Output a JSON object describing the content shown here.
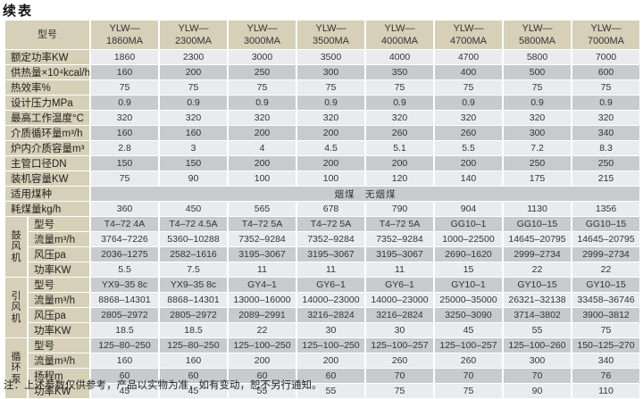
{
  "page_title": "续表",
  "note": "注：上述参数仅供参考，产品以实物为准，如有变动，恕不另行通知。",
  "colors": {
    "header_bg": "#d6d0b8",
    "row_light": "#eaebed",
    "row_dark": "#c8cbcd"
  },
  "table": {
    "corner_label": "型号",
    "columns": [
      {
        "line1": "YLW—",
        "line2": "1860MA"
      },
      {
        "line1": "YLW—",
        "line2": "2300MA"
      },
      {
        "line1": "YLW—",
        "line2": "3000MA"
      },
      {
        "line1": "YLW—",
        "line2": "3500MA"
      },
      {
        "line1": "YLW—",
        "line2": "4000MA"
      },
      {
        "line1": "YLW—",
        "line2": "4700MA"
      },
      {
        "line1": "YLW—",
        "line2": "5800MA"
      },
      {
        "line1": "YLW—",
        "line2": "7000MA"
      }
    ],
    "sections": [
      {
        "type": "rows",
        "rows": [
          {
            "label": "额定功率KW",
            "values": [
              "1860",
              "2300",
              "3000",
              "3500",
              "4000",
              "4700",
              "5800",
              "7000"
            ]
          },
          {
            "label": "供热量×10⁴kcal/h",
            "values": [
              "160",
              "200",
              "250",
              "300",
              "350",
              "400",
              "500",
              "600"
            ]
          },
          {
            "label": "热效率%",
            "values": [
              "75",
              "75",
              "75",
              "75",
              "75",
              "75",
              "75",
              "75"
            ]
          },
          {
            "label": "设计压力MPa",
            "values": [
              "0.9",
              "0.9",
              "0.9",
              "0.9",
              "0.9",
              "0.9",
              "0.9",
              "0.9"
            ]
          },
          {
            "label": "最高工作温度°C",
            "values": [
              "320",
              "320",
              "320",
              "320",
              "320",
              "320",
              "320",
              "320"
            ]
          },
          {
            "label": "介质循环量m³/h",
            "values": [
              "160",
              "160",
              "200",
              "200",
              "260",
              "260",
              "300",
              "340"
            ]
          },
          {
            "label": "炉内介质容量m³",
            "values": [
              "2.8",
              "3",
              "4",
              "4.5",
              "5.1",
              "5.5",
              "7.2",
              "8.3"
            ]
          },
          {
            "label": "主管口径DN",
            "values": [
              "150",
              "150",
              "200",
              "200",
              "200",
              "200",
              "250",
              "250"
            ]
          },
          {
            "label": "装机容量KW",
            "values": [
              "75",
              "90",
              "100",
              "100",
              "120",
              "140",
              "175",
              "215"
            ]
          },
          {
            "label": "适用煤种",
            "merged": "烟煤　无烟煤"
          },
          {
            "label": "耗煤量kg/h",
            "values": [
              "360",
              "450",
              "565",
              "678",
              "790",
              "904",
              "1130",
              "1356"
            ]
          }
        ]
      },
      {
        "type": "group",
        "label": "鼓风机",
        "rows": [
          {
            "label": "型号",
            "values": [
              "T4–72 4A",
              "T4–72 4.5A",
              "T4–72 5A",
              "T4–72 5A",
              "T4–72 5A",
              "GG10–1",
              "GG10–15",
              "GG10–15"
            ]
          },
          {
            "label": "流量m³/h",
            "values": [
              "3764–7226",
              "5360–10288",
              "7352–9284",
              "7352–9284",
              "7352–9284",
              "1000–22500",
              "14645–20795",
              "14645–20795"
            ]
          },
          {
            "label": "风压pa",
            "values": [
              "2036–1275",
              "2582–1616",
              "3195–3067",
              "3195–3067",
              "3195–3067",
              "2690–1620",
              "2999–2734",
              "2999–2734"
            ]
          },
          {
            "label": "功率KW",
            "values": [
              "5.5",
              "7.5",
              "11",
              "11",
              "11",
              "15",
              "22",
              "22"
            ]
          }
        ]
      },
      {
        "type": "group",
        "label": "引风机",
        "rows": [
          {
            "label": "型号",
            "values": [
              "YX9–35 8c",
              "YX9–35 8c",
              "GY4–1",
              "GY6–1",
              "GY6–1",
              "GY10–1",
              "GY10–15",
              "GY10–15"
            ]
          },
          {
            "label": "流量m³/h",
            "values": [
              "8868–14301",
              "8868–14301",
              "13000–16000",
              "14000–23000",
              "14000–23000",
              "25000–35000",
              "26321–32138",
              "33458–36746"
            ]
          },
          {
            "label": "风压pa",
            "values": [
              "2805–2972",
              "2805–2972",
              "2089–2991",
              "3216–2824",
              "3216–2824",
              "3250–3090",
              "3714–3802",
              "3900–3812"
            ]
          },
          {
            "label": "功率KW",
            "values": [
              "18.5",
              "18.5",
              "22",
              "30",
              "30",
              "45",
              "55",
              "75"
            ]
          }
        ]
      },
      {
        "type": "group",
        "label": "循环泵",
        "rows": [
          {
            "label": "型号",
            "values": [
              "125–80–250",
              "125–80–250",
              "125–100–250",
              "125–100–250",
              "125–100–257",
              "125–100–257",
              "125–100–260",
              "150–125–270"
            ]
          },
          {
            "label": "流量m³/h",
            "values": [
              "160",
              "160",
              "200",
              "200",
              "260",
              "260",
              "300",
              "340"
            ]
          },
          {
            "label": "扬程m",
            "values": [
              "60",
              "60",
              "60",
              "60",
              "70",
              "70",
              "70",
              "76"
            ]
          },
          {
            "label": "功率KW",
            "values": [
              "45",
              "45",
              "55",
              "55",
              "75",
              "75",
              "90",
              "110"
            ]
          }
        ]
      }
    ]
  }
}
